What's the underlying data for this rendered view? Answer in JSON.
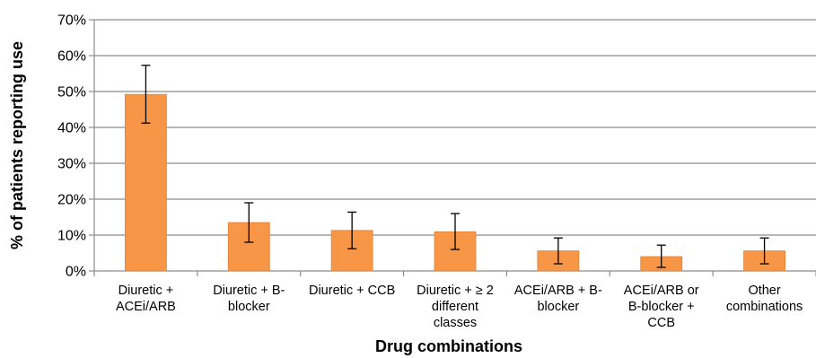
{
  "chart_data": {
    "type": "bar",
    "xlabel": "Drug combinations",
    "ylabel": "% of patients reporting use",
    "ylim": [
      0,
      70
    ],
    "yticks": [
      "0%",
      "10%",
      "20%",
      "30%",
      "40%",
      "50%",
      "60%",
      "70%"
    ],
    "categories": [
      [
        "Diuretic +",
        "ACEi/ARB"
      ],
      [
        "Diuretic + B-",
        "blocker"
      ],
      [
        "Diuretic + CCB"
      ],
      [
        "Diuretic + ≥ 2",
        "different",
        "classes"
      ],
      [
        "ACEi/ARB + B-",
        "blocker"
      ],
      [
        "ACEi/ARB or",
        "B-blocker +",
        "CCB"
      ],
      [
        "Other",
        "combinations"
      ]
    ],
    "values": [
      49.2,
      13.5,
      11.3,
      10.9,
      5.6,
      4.0,
      5.6
    ],
    "error_low": [
      41.2,
      8.0,
      6.2,
      6.0,
      2.0,
      1.0,
      2.0
    ],
    "error_high": [
      57.3,
      19.0,
      16.4,
      16.0,
      9.2,
      7.2,
      9.2
    ],
    "grid": true,
    "colors": {
      "bar": "#F79646",
      "bar_edge": "#E0823A",
      "grid": "#8C8C8C",
      "error": "#000000"
    }
  }
}
